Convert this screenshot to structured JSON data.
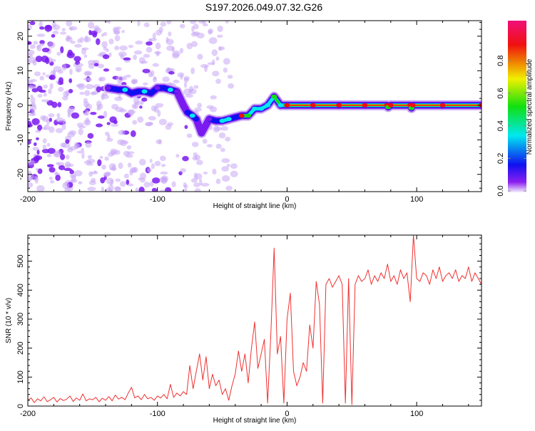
{
  "title": "S197.2026.049.07.32.G26",
  "chart_data": [
    {
      "type": "heatmap",
      "xlabel": "Height of straight line (km)",
      "ylabel": "Frequency (Hz)",
      "xlim": [
        -200,
        150
      ],
      "ylim": [
        -25,
        24.5
      ],
      "xticks": [
        -200,
        -100,
        0,
        100
      ],
      "yticks": [
        -20,
        -10,
        0,
        10,
        20
      ],
      "colorbar": {
        "label": "Normalized spectral amplitude",
        "range": [
          0,
          1
        ],
        "ticks": [
          "0.0",
          "0.2",
          "0.4",
          "0.6",
          "0.8"
        ],
        "colors": [
          "#f4eefc",
          "#8a1ff0",
          "#1010f0",
          "#00e8f0",
          "#10e010",
          "#f0f000",
          "#f08000",
          "#f01010",
          "#f0107a"
        ]
      },
      "ridge": {
        "comment_free": true,
        "x": [
          -138,
          -130,
          -125,
          -120,
          -115,
          -110,
          -105,
          -100,
          -95,
          -90,
          -85,
          -80,
          -77,
          -73,
          -70,
          -66,
          -60,
          -55,
          -50,
          -45,
          -40,
          -35,
          -30,
          -25,
          -20,
          -15,
          -10,
          -5,
          0,
          20,
          40,
          60,
          77,
          78,
          80,
          95,
          96,
          97,
          120,
          150
        ],
        "freq": [
          5,
          4.5,
          4.5,
          3.5,
          4,
          4,
          3.5,
          5,
          5,
          4.5,
          4,
          0,
          -2,
          -3,
          -4,
          -8,
          -4,
          -4.5,
          -4.5,
          -4,
          -3.5,
          -3,
          -3,
          -1,
          -1,
          0,
          2.5,
          0,
          0,
          0,
          0,
          0,
          0,
          -0.5,
          0,
          0,
          -0.8,
          0,
          0,
          0
        ],
        "amplitude": [
          0.15,
          0.2,
          0.35,
          0.2,
          0.2,
          0.3,
          0.2,
          0.15,
          0.25,
          0.3,
          0.15,
          0.1,
          0.25,
          0.35,
          0.2,
          0.1,
          0.15,
          0.25,
          0.3,
          0.3,
          0.25,
          0.9,
          0.5,
          0.35,
          0.45,
          0.4,
          0.55,
          0.45,
          0.8,
          0.85,
          0.85,
          0.85,
          0.85,
          0.5,
          0.85,
          0.85,
          0.5,
          0.85,
          0.88,
          0.9
        ]
      },
      "noise_x_range": [
        -200,
        -50
      ]
    },
    {
      "type": "line",
      "xlabel": "Height of straight line (km)",
      "ylabel": "SNR (10 * v/v)",
      "xlim": [
        -200,
        150
      ],
      "ylim": [
        0,
        590
      ],
      "xticks": [
        -200,
        -100,
        0,
        100
      ],
      "yticks": [
        0,
        100,
        200,
        300,
        400,
        500
      ],
      "color": "#f03030",
      "x_start": -200,
      "x_step": 2.5,
      "values": [
        20,
        28,
        12,
        25,
        18,
        32,
        15,
        22,
        30,
        14,
        26,
        19,
        24,
        35,
        16,
        28,
        20,
        42,
        18,
        25,
        22,
        30,
        15,
        27,
        20,
        33,
        18,
        38,
        24,
        30,
        22,
        45,
        65,
        28,
        35,
        22,
        40,
        25,
        30,
        20,
        35,
        28,
        40,
        25,
        75,
        30,
        45,
        35,
        50,
        40,
        140,
        60,
        120,
        180,
        90,
        170,
        60,
        110,
        70,
        90,
        40,
        60,
        20,
        70,
        110,
        190,
        120,
        180,
        80,
        200,
        290,
        130,
        180,
        230,
        10,
        250,
        545,
        180,
        240,
        10,
        300,
        390,
        120,
        70,
        100,
        150,
        120,
        280,
        200,
        430,
        350,
        10,
        420,
        440,
        410,
        430,
        450,
        420,
        10,
        440,
        5,
        420,
        450,
        430,
        440,
        470,
        420,
        450,
        430,
        460,
        440,
        490,
        430,
        450,
        420,
        470,
        440,
        460,
        360,
        590,
        440,
        430,
        460,
        450,
        420,
        470,
        440,
        480,
        430,
        450,
        460,
        440,
        470,
        430,
        450,
        440,
        480,
        430,
        460,
        440,
        420
      ]
    }
  ]
}
